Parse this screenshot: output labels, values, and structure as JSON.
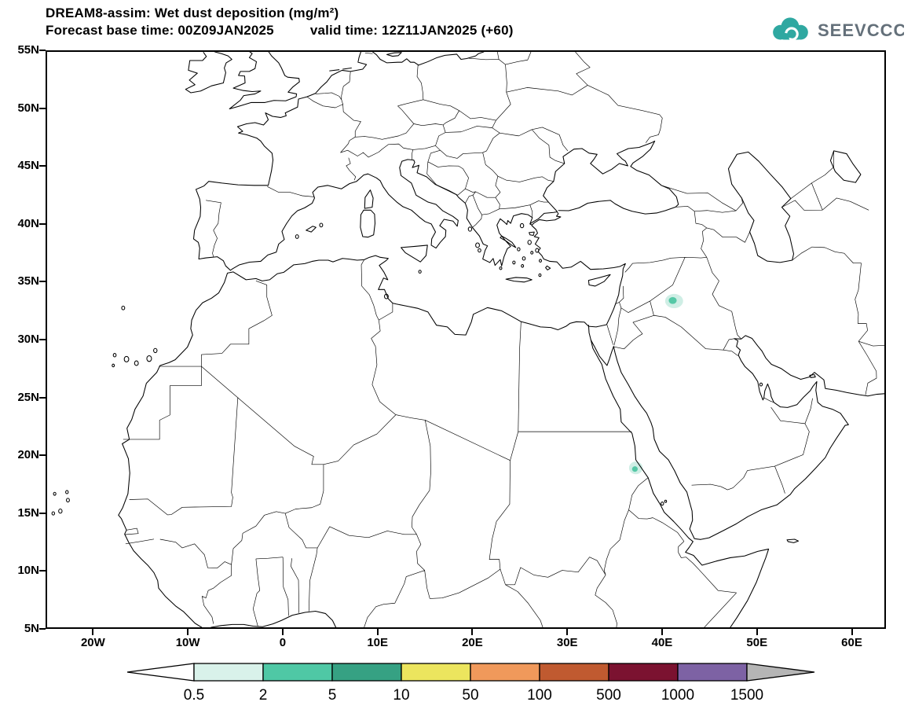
{
  "header": {
    "title": "DREAM8-assim: Wet dust deposition (mg/m²)",
    "forecast_label": "Forecast base time: 00Z09JAN2025",
    "valid_label": "valid time: 12Z11JAN2025 (+60)"
  },
  "logo": {
    "text": "SEEVCCC",
    "cloud_color": "#2fa8a1",
    "text_color": "#64707a"
  },
  "map": {
    "lat_ticks": [
      {
        "label": "55N",
        "value": 55
      },
      {
        "label": "50N",
        "value": 50
      },
      {
        "label": "45N",
        "value": 45
      },
      {
        "label": "40N",
        "value": 40
      },
      {
        "label": "35N",
        "value": 35
      },
      {
        "label": "30N",
        "value": 30
      },
      {
        "label": "25N",
        "value": 25
      },
      {
        "label": "20N",
        "value": 20
      },
      {
        "label": "15N",
        "value": 15
      },
      {
        "label": "10N",
        "value": 10
      },
      {
        "label": "5N",
        "value": 5
      }
    ],
    "lon_ticks": [
      {
        "label": "20W",
        "value": -20
      },
      {
        "label": "10W",
        "value": -10
      },
      {
        "label": "0",
        "value": 0
      },
      {
        "label": "10E",
        "value": 10
      },
      {
        "label": "20E",
        "value": 20
      },
      {
        "label": "30E",
        "value": 30
      },
      {
        "label": "40E",
        "value": 40
      },
      {
        "label": "50E",
        "value": 50
      },
      {
        "label": "60E",
        "value": 60
      }
    ]
  },
  "colorbar": {
    "labels": [
      "0.5",
      "2",
      "5",
      "10",
      "50",
      "100",
      "500",
      "1000",
      "1500"
    ],
    "colors": [
      "#d9f2ea",
      "#4fc8a5",
      "#36a183",
      "#ece55e",
      "#f0995b",
      "#c05a30",
      "#7b1230",
      "#7d62a4"
    ],
    "left_arrow_color": "#ffffff",
    "right_arrow_color": "#b5b5b5"
  },
  "spots": [
    {
      "name": "deposit-iraq",
      "outer": {
        "lon": 41.35,
        "lat": 33.35,
        "rx": 0.95,
        "ry": 0.62
      },
      "inner": {
        "lon": 41.2,
        "lat": 33.4,
        "rx": 0.42,
        "ry": 0.3
      },
      "outer_color": "#cfeee5",
      "inner_color": "#55c8a6"
    },
    {
      "name": "deposit-sudan",
      "outer": {
        "lon": 37.3,
        "lat": 18.85,
        "rx": 0.72,
        "ry": 0.55
      },
      "inner": {
        "lon": 37.2,
        "lat": 18.75,
        "rx": 0.3,
        "ry": 0.24
      },
      "outer_color": "#cfeee5",
      "inner_color": "#55c8a6"
    }
  ]
}
